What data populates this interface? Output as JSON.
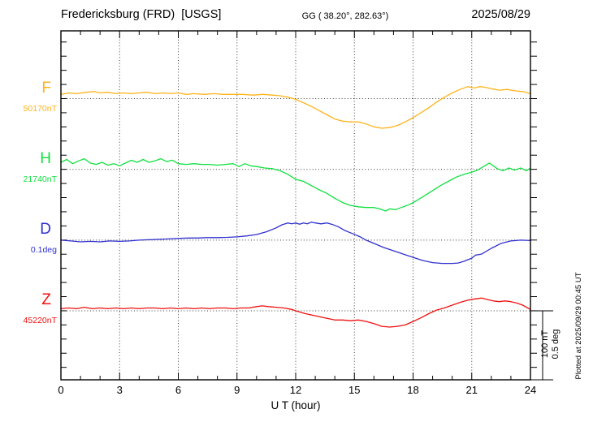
{
  "header": {
    "station": "Fredericksburg (FRD)  [USGS]",
    "coords": "GG ( 38.20°, 282.63°)",
    "date": "2025/08/29"
  },
  "x_axis": {
    "label": "U T (hour)",
    "tick_labels": [
      "0",
      "3",
      "6",
      "9",
      "12",
      "15",
      "18",
      "21",
      "24"
    ],
    "tick_hours": [
      0,
      3,
      6,
      9,
      12,
      15,
      18,
      21,
      24
    ]
  },
  "scale_bar": {
    "line1": "100 nT",
    "line2": "0.5 deg"
  },
  "plotted_at": "Plotted at 2025/09/29 00:45 UT",
  "channels": [
    {
      "id": "F",
      "letter": "F",
      "value": "50170nT",
      "color": "#ffb31a"
    },
    {
      "id": "H",
      "letter": "H",
      "value": "21740nT",
      "color": "#10e040"
    },
    {
      "id": "D",
      "letter": "D",
      "value": "0.1deg",
      "color": "#3030d0"
    },
    {
      "id": "Z",
      "letter": "Z",
      "value": "45220nT",
      "color": "#f01010"
    }
  ],
  "chart_data": {
    "type": "line",
    "title": "Fredericksburg (FRD) [USGS] magnetogram, 2025/08/29",
    "xlabel": "U T (hour)",
    "xlim": [
      0,
      24
    ],
    "x_major_tick": 3,
    "x_minor_tick": 1,
    "grid": "dotted vertical lines every 3 h; dotted horizontal line at each channel baseline",
    "legend_position": "channel letters and baseline values on left margin",
    "scale": {
      "per_division_nT": 100,
      "per_division_deg": 0.5
    },
    "series": [
      {
        "name": "F",
        "color": "#ffb31a",
        "baseline_value": "50170nT",
        "units": "nT offset from baseline",
        "points": [
          [
            0,
            6
          ],
          [
            0.4,
            8
          ],
          [
            0.8,
            7
          ],
          [
            1.3,
            9
          ],
          [
            1.7,
            10
          ],
          [
            2,
            8
          ],
          [
            2.4,
            9
          ],
          [
            2.8,
            7
          ],
          [
            3.2,
            8
          ],
          [
            3.6,
            7
          ],
          [
            4,
            8
          ],
          [
            4.4,
            9
          ],
          [
            4.8,
            7
          ],
          [
            5.2,
            8
          ],
          [
            5.6,
            7
          ],
          [
            6,
            8
          ],
          [
            6.4,
            6
          ],
          [
            6.8,
            7
          ],
          [
            7.3,
            6
          ],
          [
            7.8,
            7
          ],
          [
            8.3,
            6
          ],
          [
            8.8,
            6
          ],
          [
            9.3,
            6
          ],
          [
            9.8,
            5
          ],
          [
            10.3,
            6
          ],
          [
            10.8,
            5
          ],
          [
            11.2,
            4
          ],
          [
            11.6,
            2
          ],
          [
            12,
            -1
          ],
          [
            12.4,
            -6
          ],
          [
            12.8,
            -11
          ],
          [
            13.2,
            -17
          ],
          [
            13.6,
            -23
          ],
          [
            14,
            -29
          ],
          [
            14.4,
            -32
          ],
          [
            14.8,
            -33
          ],
          [
            15.2,
            -33
          ],
          [
            15.6,
            -36
          ],
          [
            16,
            -40
          ],
          [
            16.4,
            -42
          ],
          [
            16.8,
            -41
          ],
          [
            17.2,
            -38
          ],
          [
            17.6,
            -33
          ],
          [
            18,
            -27
          ],
          [
            18.4,
            -20
          ],
          [
            18.8,
            -13
          ],
          [
            19.2,
            -5
          ],
          [
            19.6,
            2
          ],
          [
            20,
            8
          ],
          [
            20.4,
            13
          ],
          [
            20.8,
            17
          ],
          [
            21.1,
            15
          ],
          [
            21.4,
            17
          ],
          [
            21.7,
            16
          ],
          [
            22,
            14
          ],
          [
            22.4,
            12
          ],
          [
            22.8,
            13
          ],
          [
            23.2,
            11
          ],
          [
            23.6,
            10
          ],
          [
            24,
            7
          ]
        ]
      },
      {
        "name": "H",
        "color": "#10e040",
        "baseline_value": "21740nT",
        "units": "nT offset from baseline",
        "points": [
          [
            0,
            10
          ],
          [
            0.3,
            14
          ],
          [
            0.6,
            8
          ],
          [
            0.9,
            12
          ],
          [
            1.2,
            15
          ],
          [
            1.5,
            9
          ],
          [
            1.8,
            7
          ],
          [
            2.1,
            10
          ],
          [
            2.4,
            6
          ],
          [
            2.7,
            8
          ],
          [
            3,
            5
          ],
          [
            3.3,
            9
          ],
          [
            3.6,
            13
          ],
          [
            3.9,
            10
          ],
          [
            4.2,
            14
          ],
          [
            4.5,
            10
          ],
          [
            4.8,
            12
          ],
          [
            5.1,
            15
          ],
          [
            5.4,
            11
          ],
          [
            5.7,
            13
          ],
          [
            6,
            8
          ],
          [
            6.4,
            7
          ],
          [
            6.8,
            8
          ],
          [
            7.2,
            7
          ],
          [
            7.6,
            7
          ],
          [
            8,
            6
          ],
          [
            8.4,
            7
          ],
          [
            8.8,
            8
          ],
          [
            9.1,
            4
          ],
          [
            9.4,
            8
          ],
          [
            9.7,
            5
          ],
          [
            10,
            4
          ],
          [
            10.4,
            2
          ],
          [
            10.8,
            1
          ],
          [
            11.2,
            -2
          ],
          [
            11.6,
            -7
          ],
          [
            12,
            -14
          ],
          [
            12.4,
            -17
          ],
          [
            12.8,
            -23
          ],
          [
            13.2,
            -29
          ],
          [
            13.6,
            -34
          ],
          [
            14,
            -41
          ],
          [
            14.4,
            -47
          ],
          [
            14.8,
            -51
          ],
          [
            15.2,
            -53
          ],
          [
            15.6,
            -54
          ],
          [
            16,
            -54
          ],
          [
            16.3,
            -56
          ],
          [
            16.6,
            -59
          ],
          [
            16.8,
            -56
          ],
          [
            17.1,
            -57
          ],
          [
            17.4,
            -54
          ],
          [
            17.8,
            -50
          ],
          [
            18.2,
            -44
          ],
          [
            18.6,
            -37
          ],
          [
            19,
            -30
          ],
          [
            19.4,
            -23
          ],
          [
            19.8,
            -17
          ],
          [
            20.2,
            -11
          ],
          [
            20.6,
            -7
          ],
          [
            21,
            -4
          ],
          [
            21.3,
            -1
          ],
          [
            21.6,
            4
          ],
          [
            21.9,
            9
          ],
          [
            22.1,
            5
          ],
          [
            22.3,
            1
          ],
          [
            22.6,
            -2
          ],
          [
            22.9,
            2
          ],
          [
            23.2,
            -1
          ],
          [
            23.5,
            2
          ],
          [
            23.8,
            -2
          ],
          [
            24,
            2
          ]
        ]
      },
      {
        "name": "D",
        "color": "#3030d0",
        "baseline_value": "0.1deg",
        "units": "deg offset from baseline",
        "points": [
          [
            0,
            0
          ],
          [
            0.5,
            -0.006
          ],
          [
            1,
            -0.012
          ],
          [
            1.5,
            -0.009
          ],
          [
            2,
            -0.012
          ],
          [
            2.5,
            -0.006
          ],
          [
            3,
            -0.009
          ],
          [
            3.5,
            -0.006
          ],
          [
            4,
            0
          ],
          [
            4.5,
            0.003
          ],
          [
            5,
            0.006
          ],
          [
            5.5,
            0.009
          ],
          [
            6,
            0.012
          ],
          [
            6.5,
            0.015
          ],
          [
            7,
            0.015
          ],
          [
            7.5,
            0.018
          ],
          [
            8,
            0.018
          ],
          [
            8.5,
            0.02
          ],
          [
            9,
            0.023
          ],
          [
            9.5,
            0.03
          ],
          [
            10,
            0.04
          ],
          [
            10.5,
            0.06
          ],
          [
            11,
            0.088
          ],
          [
            11.3,
            0.11
          ],
          [
            11.6,
            0.123
          ],
          [
            11.8,
            0.117
          ],
          [
            12,
            0.123
          ],
          [
            12.2,
            0.114
          ],
          [
            12.4,
            0.123
          ],
          [
            12.6,
            0.117
          ],
          [
            12.8,
            0.129
          ],
          [
            13,
            0.123
          ],
          [
            13.3,
            0.117
          ],
          [
            13.6,
            0.123
          ],
          [
            13.9,
            0.111
          ],
          [
            14.2,
            0.094
          ],
          [
            14.5,
            0.07
          ],
          [
            14.8,
            0.053
          ],
          [
            15,
            0.041
          ],
          [
            15.3,
            0.023
          ],
          [
            15.6,
            0
          ],
          [
            16,
            -0.023
          ],
          [
            16.5,
            -0.053
          ],
          [
            17,
            -0.076
          ],
          [
            17.5,
            -0.1
          ],
          [
            18,
            -0.123
          ],
          [
            18.5,
            -0.146
          ],
          [
            19,
            -0.161
          ],
          [
            19.5,
            -0.167
          ],
          [
            20,
            -0.167
          ],
          [
            20.3,
            -0.164
          ],
          [
            20.6,
            -0.152
          ],
          [
            21,
            -0.129
          ],
          [
            21.2,
            -0.107
          ],
          [
            21.5,
            -0.1
          ],
          [
            22,
            -0.059
          ],
          [
            22.5,
            -0.023
          ],
          [
            23,
            -0.006
          ],
          [
            23.5,
            0
          ],
          [
            24,
            -0.003
          ]
        ]
      },
      {
        "name": "Z",
        "color": "#f01010",
        "baseline_value": "45220nT",
        "units": "nT offset from baseline",
        "points": [
          [
            0,
            3
          ],
          [
            0.4,
            4
          ],
          [
            0.8,
            3
          ],
          [
            1.2,
            5
          ],
          [
            1.6,
            3
          ],
          [
            2,
            4
          ],
          [
            2.4,
            3
          ],
          [
            2.8,
            4
          ],
          [
            3.2,
            3
          ],
          [
            3.6,
            4
          ],
          [
            4,
            3
          ],
          [
            4.4,
            4
          ],
          [
            4.8,
            4
          ],
          [
            5.2,
            3
          ],
          [
            5.6,
            4
          ],
          [
            6,
            3
          ],
          [
            6.4,
            4
          ],
          [
            6.8,
            3
          ],
          [
            7.2,
            4
          ],
          [
            7.6,
            3
          ],
          [
            8,
            4
          ],
          [
            8.4,
            4
          ],
          [
            8.8,
            3
          ],
          [
            9.2,
            4
          ],
          [
            9.6,
            4
          ],
          [
            10,
            6
          ],
          [
            10.3,
            7
          ],
          [
            10.6,
            6
          ],
          [
            11,
            5
          ],
          [
            11.4,
            4
          ],
          [
            11.8,
            2
          ],
          [
            12,
            0
          ],
          [
            12.5,
            -4
          ],
          [
            13,
            -7
          ],
          [
            13.5,
            -10
          ],
          [
            14,
            -13
          ],
          [
            14.4,
            -13
          ],
          [
            14.8,
            -14
          ],
          [
            15.2,
            -13
          ],
          [
            15.6,
            -15
          ],
          [
            16,
            -18
          ],
          [
            16.4,
            -22
          ],
          [
            16.8,
            -23
          ],
          [
            17.2,
            -22
          ],
          [
            17.6,
            -20
          ],
          [
            18,
            -15
          ],
          [
            18.4,
            -10
          ],
          [
            18.8,
            -4
          ],
          [
            19.2,
            1
          ],
          [
            19.6,
            4
          ],
          [
            20,
            8
          ],
          [
            20.4,
            12
          ],
          [
            20.8,
            15
          ],
          [
            21.2,
            17
          ],
          [
            21.5,
            18
          ],
          [
            21.8,
            16
          ],
          [
            22.1,
            14
          ],
          [
            22.4,
            13
          ],
          [
            22.7,
            14
          ],
          [
            23,
            13
          ],
          [
            23.3,
            11
          ],
          [
            23.6,
            8
          ],
          [
            24,
            2
          ]
        ]
      }
    ]
  }
}
